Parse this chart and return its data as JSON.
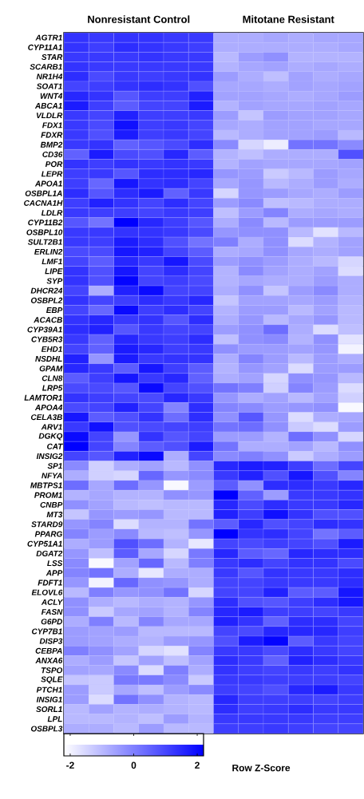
{
  "chart_data": {
    "type": "heatmap",
    "annotations": [
      "Nonresistant Control",
      "Mitotane Resistant"
    ],
    "categories": [
      null,
      null,
      null,
      null,
      null,
      null,
      null,
      null,
      null,
      null,
      null,
      null
    ],
    "y_categories": [
      "AGTR1",
      "CYP11A1",
      "STAR",
      "SCARB1",
      "NR1H4",
      "SOAT1",
      "WNT4",
      "ABCA1",
      "VLDLR",
      "FDX1",
      "FDXR",
      "BMP2",
      "CD36",
      "POR",
      "LEPR",
      "APOA1",
      "OSBPL1A",
      "CACNA1H",
      "LDLR",
      "CYP11B2",
      "OSBPL10",
      "SULT2B1",
      "ERLIN2",
      "LMF1",
      "LIPE",
      "SYP",
      "DHCR24",
      "OSBPL2",
      "EBP",
      "ACACB",
      "CYP39A1",
      "CYB5R3",
      "EHD1",
      "NSDHL",
      "GPAM",
      "CLN8",
      "LRP5",
      "LAMTOR1",
      "APOA4",
      "CELA3B",
      "ARV1",
      "DGKQ",
      "CAT",
      "INSIG2",
      "SP1",
      "NFYA",
      "MBTPS1",
      "PROM1",
      "CNBP",
      "MT3",
      "STARD9",
      "PPARG",
      "CYP51A1",
      "DGAT2",
      "LSS",
      "APP",
      "FDFT1",
      "ELOVL6",
      "ACLY",
      "FASN",
      "G6PD",
      "CYP7B1",
      "DISP3",
      "CEBPA",
      "ANXA6",
      "TSPO",
      "SQLE",
      "PTCH1",
      "INSIG1",
      "SORL1",
      "LPL",
      "OSBPL3"
    ],
    "cells": [
      [
        1.3,
        1.2,
        1.3,
        1.3,
        1.2,
        1.2,
        -0.8,
        -0.8,
        -0.7,
        -0.8,
        -0.7,
        -0.7
      ],
      [
        1.3,
        1.1,
        1.4,
        1.3,
        1.2,
        1.1,
        -0.8,
        -0.8,
        -0.8,
        -0.8,
        -0.8,
        -0.7
      ],
      [
        1.2,
        1.2,
        1.2,
        1.3,
        1.2,
        1.2,
        -1.0,
        -0.5,
        -0.3,
        -0.9,
        -0.9,
        -0.9
      ],
      [
        1.3,
        1.2,
        1.2,
        1.2,
        1.2,
        1.2,
        -0.9,
        -0.7,
        -0.6,
        -0.8,
        -0.7,
        -0.8
      ],
      [
        1.4,
        0.9,
        1.2,
        1.1,
        1.2,
        1.3,
        -0.5,
        -0.8,
        -1.1,
        -0.6,
        -0.8,
        -0.7
      ],
      [
        1.0,
        1.1,
        1.3,
        1.4,
        1.3,
        0.8,
        -0.7,
        -0.7,
        -0.8,
        -0.6,
        -0.7,
        -0.6
      ],
      [
        1.5,
        1.3,
        0.7,
        1.1,
        1.1,
        1.6,
        -0.6,
        -0.6,
        -0.7,
        -0.8,
        -0.7,
        -0.5
      ],
      [
        1.7,
        1.1,
        0.6,
        1.0,
        1.0,
        1.7,
        -0.9,
        -0.6,
        -0.7,
        -0.7,
        -0.6,
        -0.7
      ],
      [
        1.2,
        1.0,
        1.6,
        1.1,
        1.1,
        1.2,
        -0.5,
        -1.2,
        -0.5,
        -0.6,
        -0.6,
        -0.7
      ],
      [
        1.2,
        0.9,
        1.9,
        1.1,
        1.2,
        1.0,
        -0.7,
        -0.8,
        -0.6,
        -0.6,
        -0.7,
        -0.7
      ],
      [
        1.2,
        0.8,
        1.7,
        1.1,
        1.2,
        1.0,
        -1.0,
        -0.8,
        -0.6,
        -0.6,
        -0.5,
        -1.0
      ],
      [
        1.2,
        1.3,
        0.5,
        0.7,
        0.9,
        1.4,
        -0.2,
        -1.5,
        -1.9,
        0.2,
        0.2,
        -0.2
      ],
      [
        0.5,
        1.7,
        0.9,
        0.8,
        1.5,
        0.6,
        -0.9,
        -1.1,
        -0.8,
        -0.8,
        -0.8,
        0.8
      ],
      [
        1.3,
        1.1,
        1.3,
        1.2,
        1.3,
        1.2,
        -0.9,
        -0.6,
        -0.7,
        -0.7,
        -0.7,
        -0.6
      ],
      [
        1.1,
        1.2,
        0.7,
        1.4,
        1.4,
        1.5,
        -0.4,
        -0.5,
        -1.3,
        -1.0,
        -0.5,
        -0.7
      ],
      [
        1.1,
        0.4,
        1.8,
        1.3,
        1.4,
        1.0,
        -0.7,
        -0.4,
        -1.0,
        -0.8,
        -0.5,
        -0.8
      ],
      [
        1.4,
        0.7,
        1.4,
        1.7,
        0.5,
        1.2,
        -1.5,
        -0.4,
        -0.5,
        -0.7,
        -0.8,
        -0.5
      ],
      [
        1.1,
        1.6,
        1.3,
        1.0,
        1.4,
        1.0,
        -0.5,
        -0.2,
        -1.1,
        -1.0,
        -0.8,
        -0.8
      ],
      [
        1.2,
        1.1,
        1.1,
        1.0,
        1.2,
        1.1,
        -1.1,
        -0.5,
        -0.1,
        -0.8,
        -0.7,
        -0.8
      ],
      [
        0.7,
        0.2,
        2.2,
        1.5,
        1.1,
        0.7,
        -0.8,
        -0.2,
        -1.0,
        -0.5,
        -0.5,
        -0.5
      ],
      [
        1.2,
        1.2,
        1.3,
        1.3,
        1.2,
        0.9,
        -0.4,
        -0.3,
        -0.3,
        -1.0,
        -1.7,
        -1.0
      ],
      [
        1.2,
        1.1,
        1.7,
        1.4,
        0.8,
        0.2,
        0.0,
        -0.8,
        -0.3,
        -1.6,
        -0.9,
        -0.6
      ],
      [
        0.9,
        0.9,
        1.8,
        1.6,
        1.0,
        0.6,
        -0.8,
        -0.7,
        -0.3,
        -0.7,
        -0.8,
        -0.6
      ],
      [
        1.0,
        0.6,
        1.5,
        1.2,
        1.8,
        0.9,
        -0.5,
        -0.3,
        -0.5,
        -0.8,
        -1.0,
        -1.5
      ],
      [
        1.3,
        0.8,
        1.8,
        1.0,
        1.4,
        1.0,
        -0.9,
        -0.2,
        -0.6,
        -0.8,
        -0.6,
        -1.6
      ],
      [
        1.3,
        0.8,
        2.1,
        1.0,
        1.1,
        0.9,
        -0.9,
        -0.7,
        -0.8,
        -0.8,
        -0.5,
        -0.8
      ],
      [
        1.0,
        -0.8,
        1.6,
        2.0,
        1.0,
        1.0,
        -0.8,
        -0.3,
        -1.2,
        -0.5,
        -0.2,
        -0.8
      ],
      [
        1.3,
        1.0,
        1.1,
        1.4,
        1.2,
        1.5,
        -1.2,
        -0.6,
        -0.6,
        -0.7,
        -0.5,
        -0.9
      ],
      [
        1.0,
        0.4,
        2.0,
        1.1,
        1.4,
        1.0,
        -0.9,
        -0.5,
        -0.5,
        -1.0,
        -0.6,
        -1.0
      ],
      [
        1.3,
        1.5,
        1.2,
        1.3,
        0.7,
        1.4,
        -0.8,
        -0.4,
        -1.0,
        -0.7,
        -0.4,
        -1.0
      ],
      [
        1.4,
        1.6,
        0.7,
        1.2,
        1.0,
        1.0,
        -0.5,
        -0.3,
        0.3,
        -0.8,
        -1.6,
        -1.1
      ],
      [
        1.2,
        0.5,
        1.5,
        1.2,
        1.1,
        1.4,
        -1.1,
        -0.3,
        -0.2,
        -0.9,
        -0.3,
        -1.7
      ],
      [
        1.0,
        0.5,
        1.7,
        1.5,
        1.1,
        1.2,
        -0.3,
        -0.5,
        -0.5,
        -0.6,
        -0.4,
        -2.0
      ],
      [
        1.6,
        -0.4,
        1.7,
        1.2,
        1.3,
        1.3,
        -0.8,
        -0.1,
        -0.5,
        -1.0,
        -0.5,
        -0.8
      ],
      [
        1.5,
        1.2,
        0.6,
        1.8,
        1.1,
        0.6,
        -0.9,
        -0.4,
        -0.6,
        -1.6,
        -0.5,
        -0.5
      ],
      [
        0.6,
        1.1,
        1.8,
        1.2,
        1.5,
        0.5,
        -0.8,
        -0.6,
        -1.5,
        -0.3,
        -0.4,
        -1.0
      ],
      [
        0.9,
        0.9,
        0.7,
        2.0,
        1.0,
        0.8,
        0.2,
        0.0,
        -1.4,
        -0.1,
        -0.5,
        -1.6
      ],
      [
        1.3,
        1.1,
        1.0,
        0.9,
        1.5,
        1.2,
        -0.4,
        -0.8,
        -0.6,
        -1.0,
        -0.6,
        -1.4
      ],
      [
        0.9,
        1.0,
        1.6,
        1.0,
        -0.1,
        1.4,
        -0.1,
        -0.2,
        -0.5,
        -0.4,
        -0.3,
        -2.1
      ],
      [
        1.8,
        0.6,
        0.8,
        1.3,
        0.3,
        1.4,
        -0.3,
        0.7,
        -0.4,
        -1.6,
        -0.8,
        -0.7
      ],
      [
        1.2,
        1.9,
        0.8,
        0.9,
        1.0,
        1.1,
        0.2,
        0.3,
        -0.3,
        -1.3,
        -1.6,
        -0.5
      ],
      [
        2.0,
        1.0,
        -0.4,
        1.3,
        0.7,
        1.0,
        -0.5,
        -0.5,
        -0.9,
        0.3,
        -0.3,
        -1.5
      ],
      [
        2.2,
        1.0,
        -0.1,
        0.6,
        0.8,
        1.7,
        0.2,
        -0.8,
        -0.8,
        -0.6,
        -1.0,
        -0.3
      ],
      [
        1.0,
        0.7,
        1.6,
        2.0,
        -0.8,
        1.0,
        -0.2,
        0.0,
        -0.3,
        -1.3,
        -0.8,
        -0.5
      ],
      [
        -0.2,
        -1.4,
        -0.8,
        -0.6,
        -1.0,
        -0.3,
        1.5,
        1.7,
        1.6,
        1.1,
        0.3,
        1.0
      ],
      [
        -0.8,
        -1.4,
        -1.5,
        0.4,
        -0.4,
        -0.2,
        1.2,
        1.6,
        0.8,
        1.8,
        0.8,
        -0.1
      ],
      [
        0.3,
        -0.7,
        0.3,
        -0.4,
        -2.1,
        -0.5,
        0.6,
        -0.3,
        1.4,
        1.4,
        1.2,
        1.5
      ],
      [
        -0.9,
        -0.7,
        -0.9,
        -0.9,
        -0.3,
        -0.4,
        2.2,
        0.5,
        -0.5,
        1.2,
        1.2,
        1.3
      ],
      [
        -0.3,
        -0.6,
        -1.0,
        -1.1,
        -1.0,
        -1.0,
        1.5,
        0.9,
        1.4,
        1.2,
        1.2,
        1.5
      ],
      [
        -1.2,
        -0.4,
        -0.5,
        -0.4,
        -1.0,
        -1.0,
        1.6,
        1.1,
        1.9,
        1.3,
        0.8,
        0.8
      ],
      [
        -0.4,
        -0.1,
        -1.6,
        -0.9,
        -0.9,
        0.2,
        0.6,
        1.5,
        0.8,
        1.0,
        1.4,
        1.3
      ],
      [
        -0.1,
        -0.5,
        -0.2,
        -1.0,
        -1.1,
        -0.4,
        2.2,
        1.3,
        1.4,
        1.0,
        0.2,
        0.6
      ],
      [
        -0.8,
        -0.5,
        0.8,
        0.3,
        -0.9,
        -1.8,
        1.0,
        0.9,
        1.1,
        1.0,
        0.8,
        1.7
      ],
      [
        -0.4,
        -1.1,
        0.6,
        -0.7,
        -1.5,
        0.1,
        1.5,
        0.6,
        0.4,
        1.5,
        1.4,
        1.4
      ],
      [
        -0.2,
        -2.1,
        -0.6,
        0.4,
        -1.0,
        0.0,
        1.2,
        1.4,
        1.0,
        1.3,
        1.3,
        0.9
      ],
      [
        -0.1,
        0.2,
        -0.8,
        -1.8,
        -0.8,
        -0.8,
        1.2,
        0.7,
        1.3,
        1.2,
        1.2,
        1.4
      ],
      [
        -0.4,
        -2.0,
        0.4,
        -0.3,
        -0.4,
        -0.8,
        1.0,
        1.0,
        1.2,
        1.2,
        1.2,
        1.4
      ],
      [
        -1.0,
        0.0,
        -0.4,
        -0.3,
        0.2,
        -1.5,
        1.0,
        1.0,
        1.6,
        0.6,
        0.6,
        1.8
      ],
      [
        -0.3,
        -0.8,
        -1.0,
        -0.8,
        -0.9,
        -0.4,
        1.4,
        0.8,
        0.7,
        1.1,
        1.4,
        1.8
      ],
      [
        -0.3,
        -1.3,
        -0.7,
        -0.6,
        -0.9,
        -0.1,
        1.5,
        1.7,
        1.1,
        1.1,
        1.0,
        1.2
      ],
      [
        -0.8,
        0.0,
        -1.0,
        -0.1,
        -0.7,
        -0.7,
        1.6,
        1.3,
        0.5,
        1.4,
        1.4,
        1.0
      ],
      [
        -0.5,
        -0.6,
        -0.5,
        -1.0,
        -1.0,
        -1.0,
        1.0,
        0.9,
        1.5,
        1.5,
        1.5,
        1.1
      ],
      [
        -0.5,
        -0.6,
        -0.8,
        -0.9,
        -0.5,
        -0.4,
        0.8,
        1.7,
        2.1,
        0.6,
        1.2,
        1.0
      ],
      [
        0.0,
        -0.3,
        -0.6,
        -1.5,
        -1.7,
        -0.1,
        1.2,
        1.2,
        0.9,
        1.4,
        1.2,
        1.0
      ],
      [
        -0.8,
        -0.5,
        -1.2,
        -0.6,
        -1.1,
        -0.6,
        1.4,
        1.2,
        0.5,
        1.6,
        1.4,
        1.2
      ],
      [
        -0.6,
        -0.7,
        -0.2,
        -1.6,
        0.0,
        -0.8,
        1.3,
        1.1,
        1.0,
        1.2,
        1.1,
        1.3
      ],
      [
        -1.2,
        -1.3,
        0.1,
        0.1,
        -0.2,
        -1.3,
        1.2,
        1.2,
        1.1,
        1.1,
        1.1,
        1.0
      ],
      [
        -0.5,
        -1.3,
        -0.7,
        -1.1,
        -0.5,
        -0.2,
        1.1,
        1.0,
        0.8,
        1.5,
        1.7,
        1.2
      ],
      [
        -0.5,
        -1.6,
        0.2,
        -0.3,
        -0.9,
        -1.0,
        1.5,
        1.1,
        1.1,
        1.1,
        1.0,
        1.1
      ],
      [
        -1.0,
        -0.6,
        -0.9,
        -0.8,
        -0.9,
        -1.0,
        1.4,
        1.1,
        1.2,
        1.4,
        1.2,
        1.2
      ],
      [
        -1.0,
        -1.0,
        -0.9,
        -1.1,
        -0.5,
        -0.9,
        1.2,
        1.2,
        1.2,
        1.2,
        1.1,
        1.1
      ],
      [
        -0.8,
        -0.8,
        -1.0,
        -0.5,
        -1.0,
        -1.0,
        1.1,
        1.1,
        1.2,
        1.1,
        1.0,
        1.0
      ]
    ],
    "clim": [
      -2.2,
      2.2
    ],
    "cticks": [
      -2,
      0,
      2
    ],
    "clabel": "Row Z-Score"
  }
}
